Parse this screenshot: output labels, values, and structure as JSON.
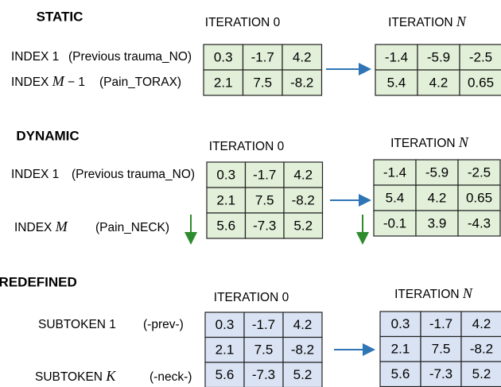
{
  "sections": [
    {
      "title": "STATIC",
      "iteration_left": {
        "text": "ITERATION 0"
      },
      "iteration_right": {
        "text": "ITERATION",
        "var": "N"
      },
      "row_labels": [
        {
          "label": {
            "text": "INDEX 1"
          },
          "note": "(Previous trauma_NO)"
        },
        {
          "label": {
            "text": "INDEX",
            "var": "M",
            "suffix": "− 1"
          },
          "note": "(Pain_TORAX)"
        }
      ],
      "table_left": [
        [
          "0.3",
          "-1.7",
          "4.2"
        ],
        [
          "2.1",
          "7.5",
          "-8.2"
        ]
      ],
      "table_right": [
        [
          "-1.4",
          "-5.9",
          "-2.5"
        ],
        [
          "5.4",
          "4.2",
          "0.65"
        ]
      ]
    },
    {
      "title": "DYNAMIC",
      "iteration_left": {
        "text": "ITERATION 0"
      },
      "iteration_right": {
        "text": "ITERATION",
        "var": "N"
      },
      "row_labels": [
        {
          "label": {
            "text": "INDEX 1"
          },
          "note": "(Previous trauma_NO)"
        },
        null,
        {
          "label": {
            "text": "INDEX",
            "var": "M"
          },
          "note": "(Pain_NECK)"
        }
      ],
      "table_left": [
        [
          "0.3",
          "-1.7",
          "4.2"
        ],
        [
          "2.1",
          "7.5",
          "-8.2"
        ],
        [
          "5.6",
          "-7.3",
          "5.2"
        ]
      ],
      "table_right": [
        [
          "-1.4",
          "-5.9",
          "-2.5"
        ],
        [
          "5.4",
          "4.2",
          "0.65"
        ],
        [
          "-0.1",
          "3.9",
          "-4.3"
        ]
      ]
    },
    {
      "title": "PREDEFINED",
      "iteration_left": {
        "text": "ITERATION 0"
      },
      "iteration_right": {
        "text": "ITERATION",
        "var": "N"
      },
      "row_labels": [
        {
          "label": {
            "text": "SUBTOKEN 1"
          },
          "note": "(-prev-)"
        },
        null,
        {
          "label": {
            "text": "SUBTOKEN",
            "var": "K"
          },
          "note": "(-neck-)"
        }
      ],
      "table_left": [
        [
          "0.3",
          "-1.7",
          "4.2"
        ],
        [
          "2.1",
          "7.5",
          "-8.2"
        ],
        [
          "5.6",
          "-7.3",
          "5.2"
        ]
      ],
      "table_right": [
        [
          "0.3",
          "-1.7",
          "4.2"
        ],
        [
          "2.1",
          "7.5",
          "-8.2"
        ],
        [
          "5.6",
          "-7.3",
          "5.2"
        ]
      ]
    }
  ]
}
